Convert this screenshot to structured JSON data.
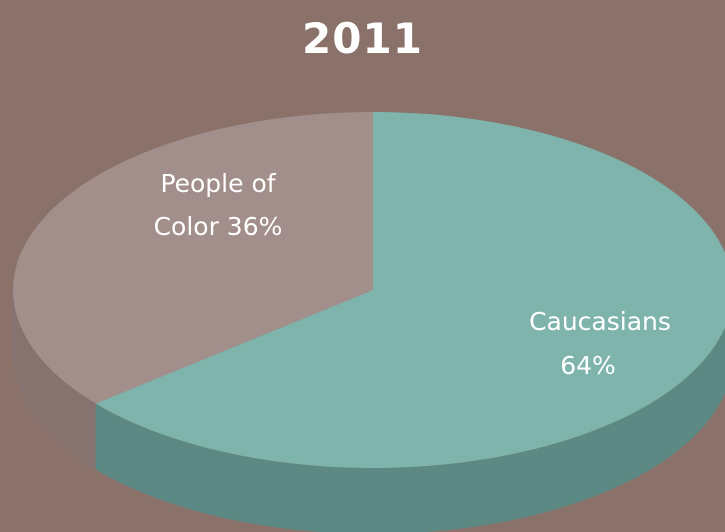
{
  "chart_data": {
    "type": "pie",
    "title": "2011",
    "slices": [
      {
        "label": "Caucasians",
        "value_text": "64%",
        "value": 64,
        "color": "#7fb4ad",
        "side_color": "#5d8985"
      },
      {
        "label": "People of",
        "label_line2": "Color 36%",
        "value": 36,
        "color": "#a28e8a",
        "side_color": "#86736f"
      }
    ],
    "style": "3d-tilted",
    "legend": "none"
  }
}
